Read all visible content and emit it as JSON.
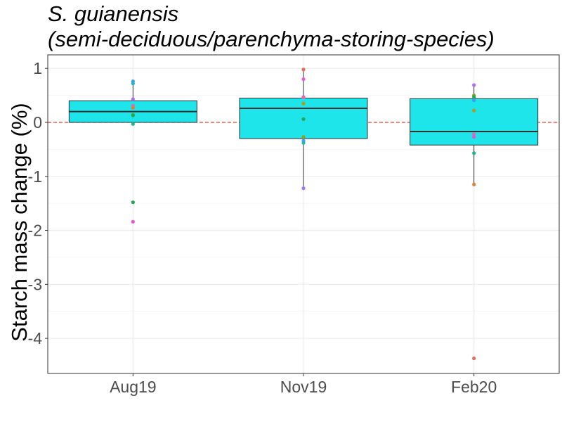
{
  "chart_data": {
    "type": "box",
    "title": "S. guianensis\n(semi-deciduous/parenchyma-storing-species)",
    "ylabel": "Starch mass change (%)",
    "xlabel": "",
    "categories": [
      "Aug19",
      "Nov19",
      "Feb20"
    ],
    "yticks": [
      1,
      0,
      -1,
      -2,
      -3,
      -4
    ],
    "ytick_labels": [
      "1",
      "0",
      "-1",
      "-2",
      "-3",
      "-4"
    ],
    "ylim": [
      -4.65,
      1.25
    ],
    "reference_line": 0,
    "grid": true,
    "box_fill": "#1de5ea",
    "reference_color": "#e8403b",
    "boxes": [
      {
        "category": "Aug19",
        "q1": 0.0,
        "median": 0.2,
        "q3": 0.4,
        "whisker_low": 0.0,
        "whisker_high": 0.75
      },
      {
        "category": "Nov19",
        "q1": -0.3,
        "median": 0.26,
        "q3": 0.45,
        "whisker_low": -1.22,
        "whisker_high": 0.98
      },
      {
        "category": "Feb20",
        "q1": -0.42,
        "median": -0.17,
        "q3": 0.44,
        "whisker_low": -1.15,
        "whisker_high": 0.69
      }
    ],
    "points": [
      {
        "category": "Aug19",
        "y": 0.76,
        "color": "#3d9df2"
      },
      {
        "category": "Aug19",
        "y": 0.72,
        "color": "#23b3c9"
      },
      {
        "category": "Aug19",
        "y": 0.43,
        "color": "#b06ef5"
      },
      {
        "category": "Aug19",
        "y": 0.31,
        "color": "#e06bb4"
      },
      {
        "category": "Aug19",
        "y": 0.27,
        "color": "#e0803a"
      },
      {
        "category": "Aug19",
        "y": 0.14,
        "color": "#8aa320"
      },
      {
        "category": "Aug19",
        "y": 0.13,
        "color": "#22a84f"
      },
      {
        "category": "Aug19",
        "y": -0.03,
        "color": "#22b38c"
      },
      {
        "category": "Aug19",
        "y": -1.48,
        "color": "#22a84f"
      },
      {
        "category": "Aug19",
        "y": -1.84,
        "color": "#e05bd5"
      },
      {
        "category": "Nov19",
        "y": 0.98,
        "color": "#e0705a"
      },
      {
        "category": "Nov19",
        "y": 0.8,
        "color": "#e05bd5"
      },
      {
        "category": "Nov19",
        "y": 0.47,
        "color": "#b06ef5"
      },
      {
        "category": "Nov19",
        "y": 0.46,
        "color": "#e06bb4"
      },
      {
        "category": "Nov19",
        "y": 0.35,
        "color": "#b39a1c"
      },
      {
        "category": "Nov19",
        "y": 0.06,
        "color": "#22a84f"
      },
      {
        "category": "Nov19",
        "y": -0.27,
        "color": "#8aa320"
      },
      {
        "category": "Nov19",
        "y": -0.34,
        "color": "#3d9df2"
      },
      {
        "category": "Nov19",
        "y": -0.38,
        "color": "#23b3c9"
      },
      {
        "category": "Nov19",
        "y": -1.22,
        "color": "#9b7af5"
      },
      {
        "category": "Feb20",
        "y": 0.69,
        "color": "#b06ef5"
      },
      {
        "category": "Feb20",
        "y": 0.5,
        "color": "#8aa320"
      },
      {
        "category": "Feb20",
        "y": 0.47,
        "color": "#22a84f"
      },
      {
        "category": "Feb20",
        "y": 0.41,
        "color": "#3d9df2"
      },
      {
        "category": "Feb20",
        "y": 0.22,
        "color": "#b39a1c"
      },
      {
        "category": "Feb20",
        "y": -0.22,
        "color": "#e06bb4"
      },
      {
        "category": "Feb20",
        "y": -0.27,
        "color": "#e05bd5"
      },
      {
        "category": "Feb20",
        "y": -0.57,
        "color": "#22b38c"
      },
      {
        "category": "Feb20",
        "y": -1.15,
        "color": "#e0803a"
      },
      {
        "category": "Feb20",
        "y": -4.37,
        "color": "#e0705a"
      }
    ]
  }
}
